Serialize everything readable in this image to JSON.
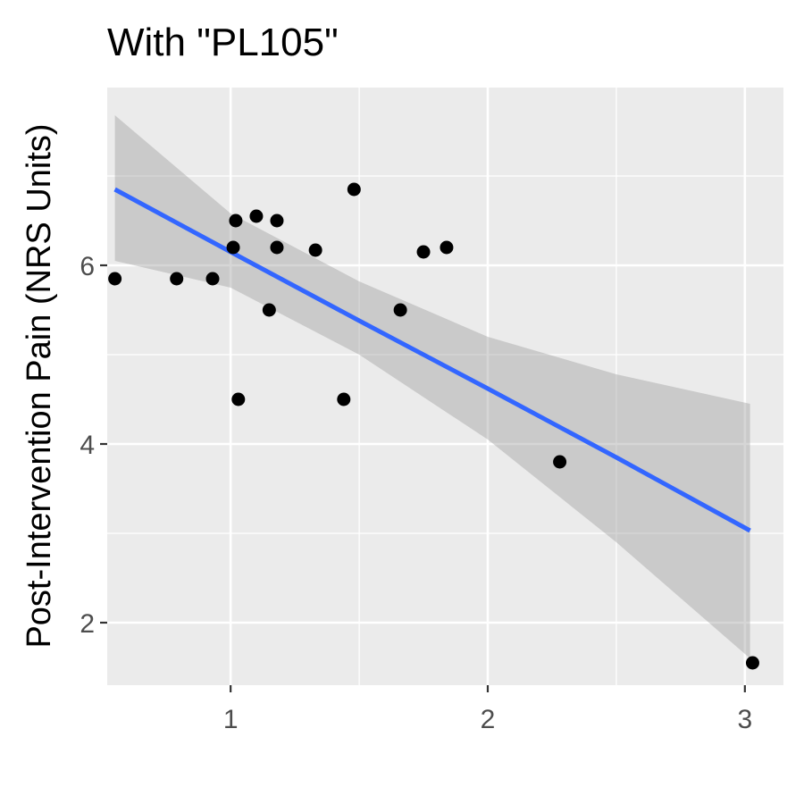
{
  "chart_data": {
    "type": "scatter",
    "title": "With \"PL105\"",
    "xlabel": "",
    "ylabel": "Post-Intervention Pain (NRS Units)",
    "xlim": [
      0.52,
      3.15
    ],
    "ylim": [
      1.3,
      7.99
    ],
    "x_ticks": [
      1,
      2,
      3
    ],
    "y_ticks": [
      2,
      4,
      6
    ],
    "x_minor": [
      0.5,
      1.5,
      2.5
    ],
    "y_minor": [
      3,
      5,
      7
    ],
    "grid": true,
    "legend": "none",
    "colors": {
      "panel": "#ebebeb",
      "grid": "#ffffff",
      "points": "#000000",
      "fit_line": "#3366ff",
      "ribbon": "#999999",
      "ticks": "#333333"
    },
    "points": [
      {
        "x": 0.55,
        "y": 5.85
      },
      {
        "x": 0.79,
        "y": 5.85
      },
      {
        "x": 0.93,
        "y": 5.85
      },
      {
        "x": 1.01,
        "y": 6.2
      },
      {
        "x": 1.02,
        "y": 6.5
      },
      {
        "x": 1.03,
        "y": 4.5
      },
      {
        "x": 1.1,
        "y": 6.55
      },
      {
        "x": 1.15,
        "y": 5.5
      },
      {
        "x": 1.18,
        "y": 6.2
      },
      {
        "x": 1.18,
        "y": 6.5
      },
      {
        "x": 1.33,
        "y": 6.17
      },
      {
        "x": 1.44,
        "y": 4.5
      },
      {
        "x": 1.48,
        "y": 6.85
      },
      {
        "x": 1.66,
        "y": 5.5
      },
      {
        "x": 1.75,
        "y": 6.15
      },
      {
        "x": 1.84,
        "y": 6.2
      },
      {
        "x": 2.28,
        "y": 3.8
      },
      {
        "x": 3.03,
        "y": 1.55
      }
    ],
    "fit": {
      "x": [
        0.55,
        1.0,
        1.5,
        2.0,
        2.5,
        3.02
      ],
      "y": [
        6.85,
        6.15,
        5.38,
        4.62,
        3.85,
        3.03
      ],
      "lower": [
        6.05,
        5.75,
        5.0,
        4.05,
        2.9,
        1.6
      ],
      "upper": [
        7.68,
        6.58,
        5.82,
        5.2,
        4.78,
        4.45
      ]
    }
  }
}
